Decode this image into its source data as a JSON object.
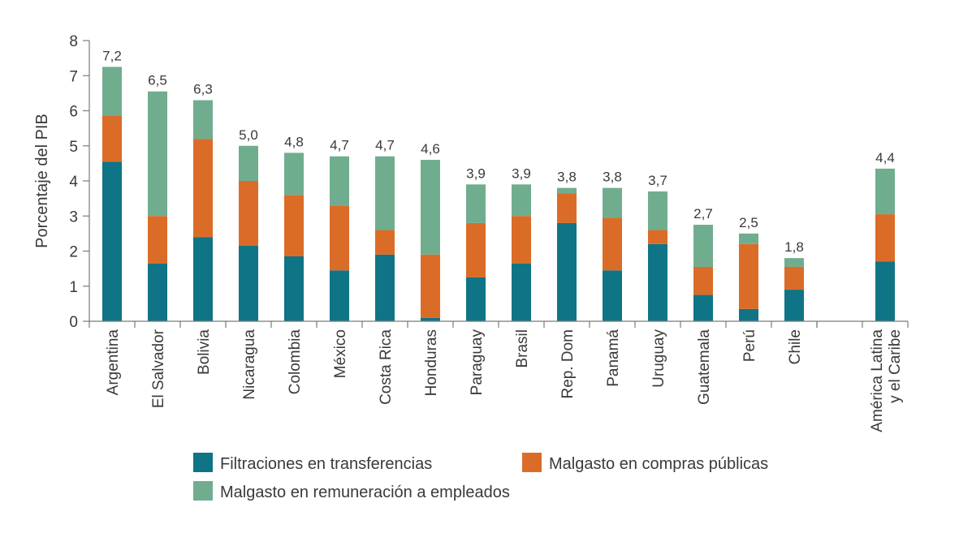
{
  "chart_data": {
    "type": "bar",
    "stacked": true,
    "title": "",
    "xlabel": "",
    "ylabel": "Porcentaje del PIB",
    "ylim": [
      0,
      8
    ],
    "yticks": [
      0,
      1,
      2,
      3,
      4,
      5,
      6,
      7,
      8
    ],
    "grid": false,
    "categories": [
      [
        "Argentina"
      ],
      [
        "El Salvador"
      ],
      [
        "Bolivia"
      ],
      [
        "Nicaragua"
      ],
      [
        "Colombia"
      ],
      [
        "México"
      ],
      [
        "Costa Rica"
      ],
      [
        "Honduras"
      ],
      [
        "Paraguay"
      ],
      [
        "Brasil"
      ],
      [
        "Rep. Dom"
      ],
      [
        "Panamá"
      ],
      [
        "Uruguay"
      ],
      [
        "Guatemala"
      ],
      [
        "Perú"
      ],
      [
        "Chile"
      ],
      [
        "América Latina",
        "y el Caribe"
      ]
    ],
    "gap_before_index": 16,
    "series": [
      {
        "name": "Filtraciones en transferencias",
        "color": "#0f7485",
        "values": [
          4.55,
          1.65,
          2.4,
          2.15,
          1.85,
          1.45,
          1.9,
          0.1,
          1.25,
          1.65,
          2.8,
          1.45,
          2.2,
          0.75,
          0.35,
          0.9,
          1.7
        ]
      },
      {
        "name": "Malgasto en compras públicas",
        "color": "#db6c28",
        "values": [
          1.3,
          1.35,
          2.8,
          1.85,
          1.75,
          1.85,
          0.7,
          1.8,
          1.55,
          1.35,
          0.85,
          1.5,
          0.4,
          0.8,
          1.85,
          0.65,
          1.35
        ]
      },
      {
        "name": "Malgasto en remuneración a empleados",
        "color": "#70ad8f",
        "values": [
          1.4,
          3.55,
          1.1,
          1.0,
          1.2,
          1.4,
          2.1,
          2.7,
          1.1,
          0.9,
          0.15,
          0.85,
          1.1,
          1.2,
          0.3,
          0.25,
          1.3
        ]
      }
    ],
    "totals": [
      "7,2",
      "6,5",
      "6,3",
      "5,0",
      "4,8",
      "4,7",
      "4,7",
      "4,6",
      "3,9",
      "3,9",
      "3,8",
      "3,8",
      "3,7",
      "2,7",
      "2,5",
      "1,8",
      "4,4"
    ],
    "legend": [
      "Filtraciones en transferencias",
      "Malgasto en compras públicas",
      "Malgasto en remuneración a empleados"
    ],
    "legend_position": "bottom"
  }
}
